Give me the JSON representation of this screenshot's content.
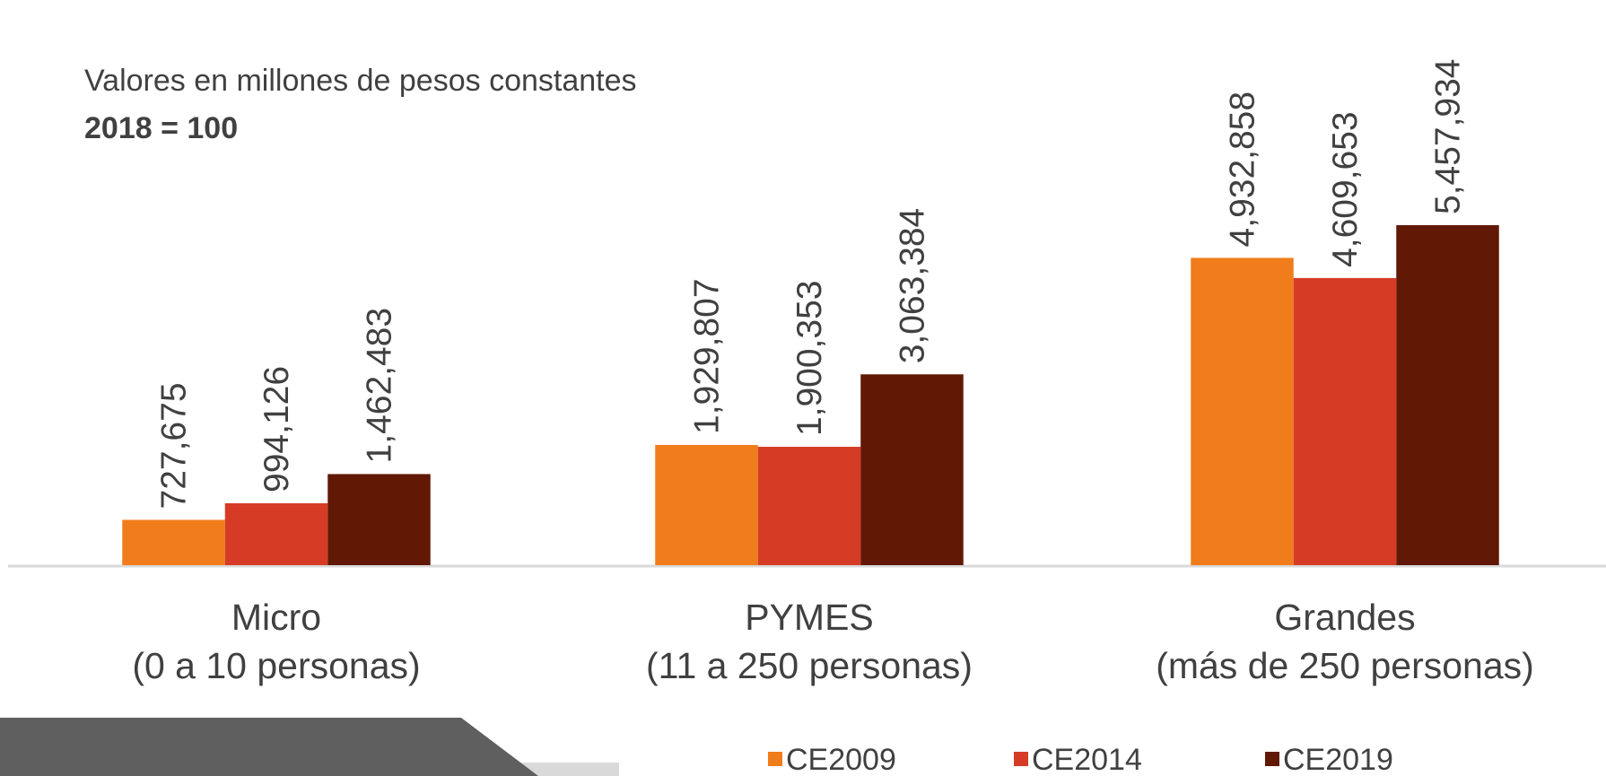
{
  "chart_data": {
    "type": "bar",
    "subtitle": [
      "Valores en millones de pesos constantes",
      "2018 = 100"
    ],
    "categories": [
      [
        "Micro",
        "(0 a 10 personas)"
      ],
      [
        "PYMES",
        "(11 a 250 personas)"
      ],
      [
        "Grandes",
        "(más de 250 personas)"
      ]
    ],
    "series": [
      {
        "name": "CE2009",
        "color": "#f07c1b",
        "values": [
          727675,
          1929807,
          4932858
        ],
        "value_labels": [
          "727,675",
          "1,929,807",
          "4,932,858"
        ]
      },
      {
        "name": "CE2014",
        "color": "#d63c25",
        "values": [
          994126,
          1900353,
          4609653
        ],
        "value_labels": [
          "994,126",
          "1,900,353",
          "4,609,653"
        ]
      },
      {
        "name": "CE2019",
        "color": "#611905",
        "values": [
          1462483,
          3063384,
          5457934
        ],
        "value_labels": [
          "1,462,483",
          "3,063,384",
          "5,457,934"
        ]
      }
    ],
    "legend": "bottom"
  }
}
